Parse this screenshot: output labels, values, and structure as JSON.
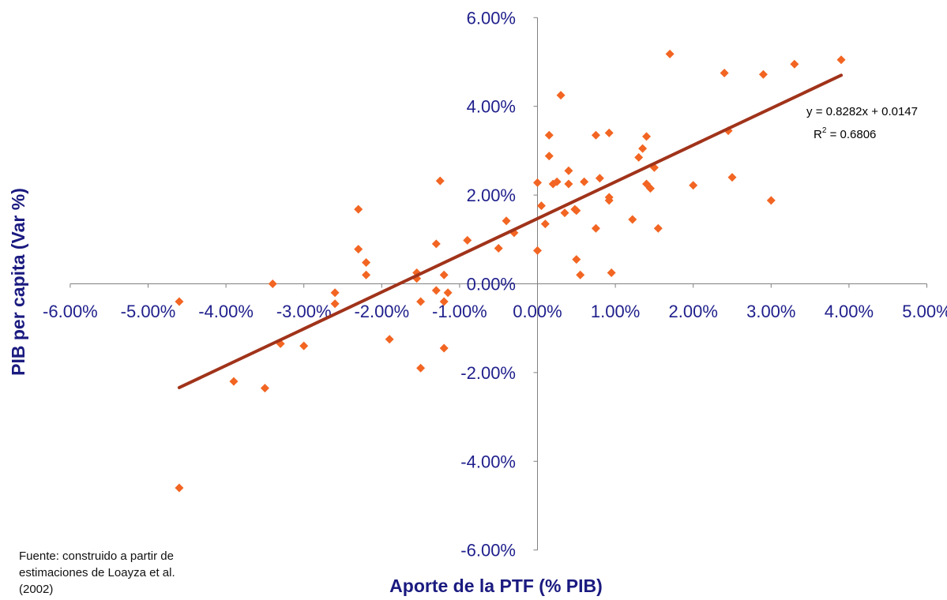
{
  "chart_data": {
    "type": "scatter",
    "xlabel": "Aporte de la PTF (% PIB)",
    "ylabel": "PIB per capita (Var %)",
    "xlim": [
      -0.06,
      0.05
    ],
    "ylim": [
      -0.06,
      0.06
    ],
    "x_ticks": [
      -0.06,
      -0.05,
      -0.04,
      -0.03,
      -0.02,
      -0.01,
      0.0,
      0.01,
      0.02,
      0.03,
      0.04,
      0.05
    ],
    "x_tick_labels": [
      "-6.00%",
      "-5.00%",
      "-4.00%",
      "-3.00%",
      "-2.00%",
      "-1.00%",
      "0.00%",
      "1.00%",
      "2.00%",
      "3.00%",
      "4.00%",
      "5.00%"
    ],
    "y_ticks": [
      -0.06,
      -0.04,
      -0.02,
      0.0,
      0.02,
      0.04,
      0.06
    ],
    "y_tick_labels": [
      "-6.00%",
      "-4.00%",
      "-2.00%",
      "0.00%",
      "2.00%",
      "4.00%",
      "6.00%"
    ],
    "marker_color": "#f26522",
    "trendline_color": "#a0331a",
    "axis_label_color": "#1a1a80",
    "trendline": {
      "slope": 0.8282,
      "intercept": 0.0147,
      "x_range": [
        -0.046,
        0.039
      ]
    },
    "equation_label": "y = 0.8282x + 0.0147",
    "r2_label": "R",
    "r2_superscript": "2",
    "r2_value_label": " = 0.6806",
    "points": [
      {
        "x": -0.046,
        "y": -0.004
      },
      {
        "x": -0.046,
        "y": -0.046
      },
      {
        "x": -0.039,
        "y": -0.022
      },
      {
        "x": -0.035,
        "y": -0.0235
      },
      {
        "x": -0.034,
        "y": 0.0
      },
      {
        "x": -0.033,
        "y": -0.0135
      },
      {
        "x": -0.03,
        "y": -0.014
      },
      {
        "x": -0.026,
        "y": -0.002
      },
      {
        "x": -0.026,
        "y": -0.0045
      },
      {
        "x": -0.023,
        "y": 0.0168
      },
      {
        "x": -0.023,
        "y": 0.0078
      },
      {
        "x": -0.022,
        "y": 0.0048
      },
      {
        "x": -0.022,
        "y": 0.002
      },
      {
        "x": -0.019,
        "y": -0.0125
      },
      {
        "x": -0.0155,
        "y": 0.0012
      },
      {
        "x": -0.0155,
        "y": 0.0025
      },
      {
        "x": -0.015,
        "y": -0.004
      },
      {
        "x": -0.015,
        "y": -0.019
      },
      {
        "x": -0.013,
        "y": 0.009
      },
      {
        "x": -0.013,
        "y": -0.0015
      },
      {
        "x": -0.0125,
        "y": 0.0232
      },
      {
        "x": -0.012,
        "y": -0.0145
      },
      {
        "x": -0.012,
        "y": -0.004
      },
      {
        "x": -0.012,
        "y": 0.002
      },
      {
        "x": -0.0115,
        "y": -0.002
      },
      {
        "x": -0.009,
        "y": 0.0098
      },
      {
        "x": -0.005,
        "y": 0.008
      },
      {
        "x": -0.004,
        "y": 0.0142
      },
      {
        "x": -0.003,
        "y": 0.0115
      },
      {
        "x": 0.0,
        "y": 0.0228
      },
      {
        "x": 0.0,
        "y": 0.0075
      },
      {
        "x": 0.0005,
        "y": 0.0176
      },
      {
        "x": 0.001,
        "y": 0.0135
      },
      {
        "x": 0.0015,
        "y": 0.0335
      },
      {
        "x": 0.0015,
        "y": 0.0288
      },
      {
        "x": 0.002,
        "y": 0.0225
      },
      {
        "x": 0.0025,
        "y": 0.023
      },
      {
        "x": 0.003,
        "y": 0.0425
      },
      {
        "x": 0.0035,
        "y": 0.016
      },
      {
        "x": 0.004,
        "y": 0.0255
      },
      {
        "x": 0.004,
        "y": 0.0225
      },
      {
        "x": 0.0048,
        "y": 0.0168
      },
      {
        "x": 0.005,
        "y": 0.0055
      },
      {
        "x": 0.005,
        "y": 0.0165
      },
      {
        "x": 0.0055,
        "y": 0.002
      },
      {
        "x": 0.006,
        "y": 0.023
      },
      {
        "x": 0.0075,
        "y": 0.0335
      },
      {
        "x": 0.0075,
        "y": 0.0125
      },
      {
        "x": 0.008,
        "y": 0.0238
      },
      {
        "x": 0.0092,
        "y": 0.034
      },
      {
        "x": 0.0092,
        "y": 0.0195
      },
      {
        "x": 0.0092,
        "y": 0.0188
      },
      {
        "x": 0.0095,
        "y": 0.0025
      },
      {
        "x": 0.0122,
        "y": 0.0145
      },
      {
        "x": 0.013,
        "y": 0.0285
      },
      {
        "x": 0.0135,
        "y": 0.0305
      },
      {
        "x": 0.014,
        "y": 0.0332
      },
      {
        "x": 0.014,
        "y": 0.0225
      },
      {
        "x": 0.0145,
        "y": 0.0215
      },
      {
        "x": 0.015,
        "y": 0.0262
      },
      {
        "x": 0.0155,
        "y": 0.0125
      },
      {
        "x": 0.017,
        "y": 0.0518
      },
      {
        "x": 0.02,
        "y": 0.0222
      },
      {
        "x": 0.024,
        "y": 0.0475
      },
      {
        "x": 0.0245,
        "y": 0.0345
      },
      {
        "x": 0.025,
        "y": 0.024
      },
      {
        "x": 0.029,
        "y": 0.0472
      },
      {
        "x": 0.03,
        "y": 0.0188
      },
      {
        "x": 0.033,
        "y": 0.0495
      },
      {
        "x": 0.039,
        "y": 0.0505
      }
    ]
  },
  "footnote": {
    "line1": "Fuente: construido a partir de",
    "line2": "estimaciones de Loayza et al.",
    "line3": "(2002)"
  }
}
